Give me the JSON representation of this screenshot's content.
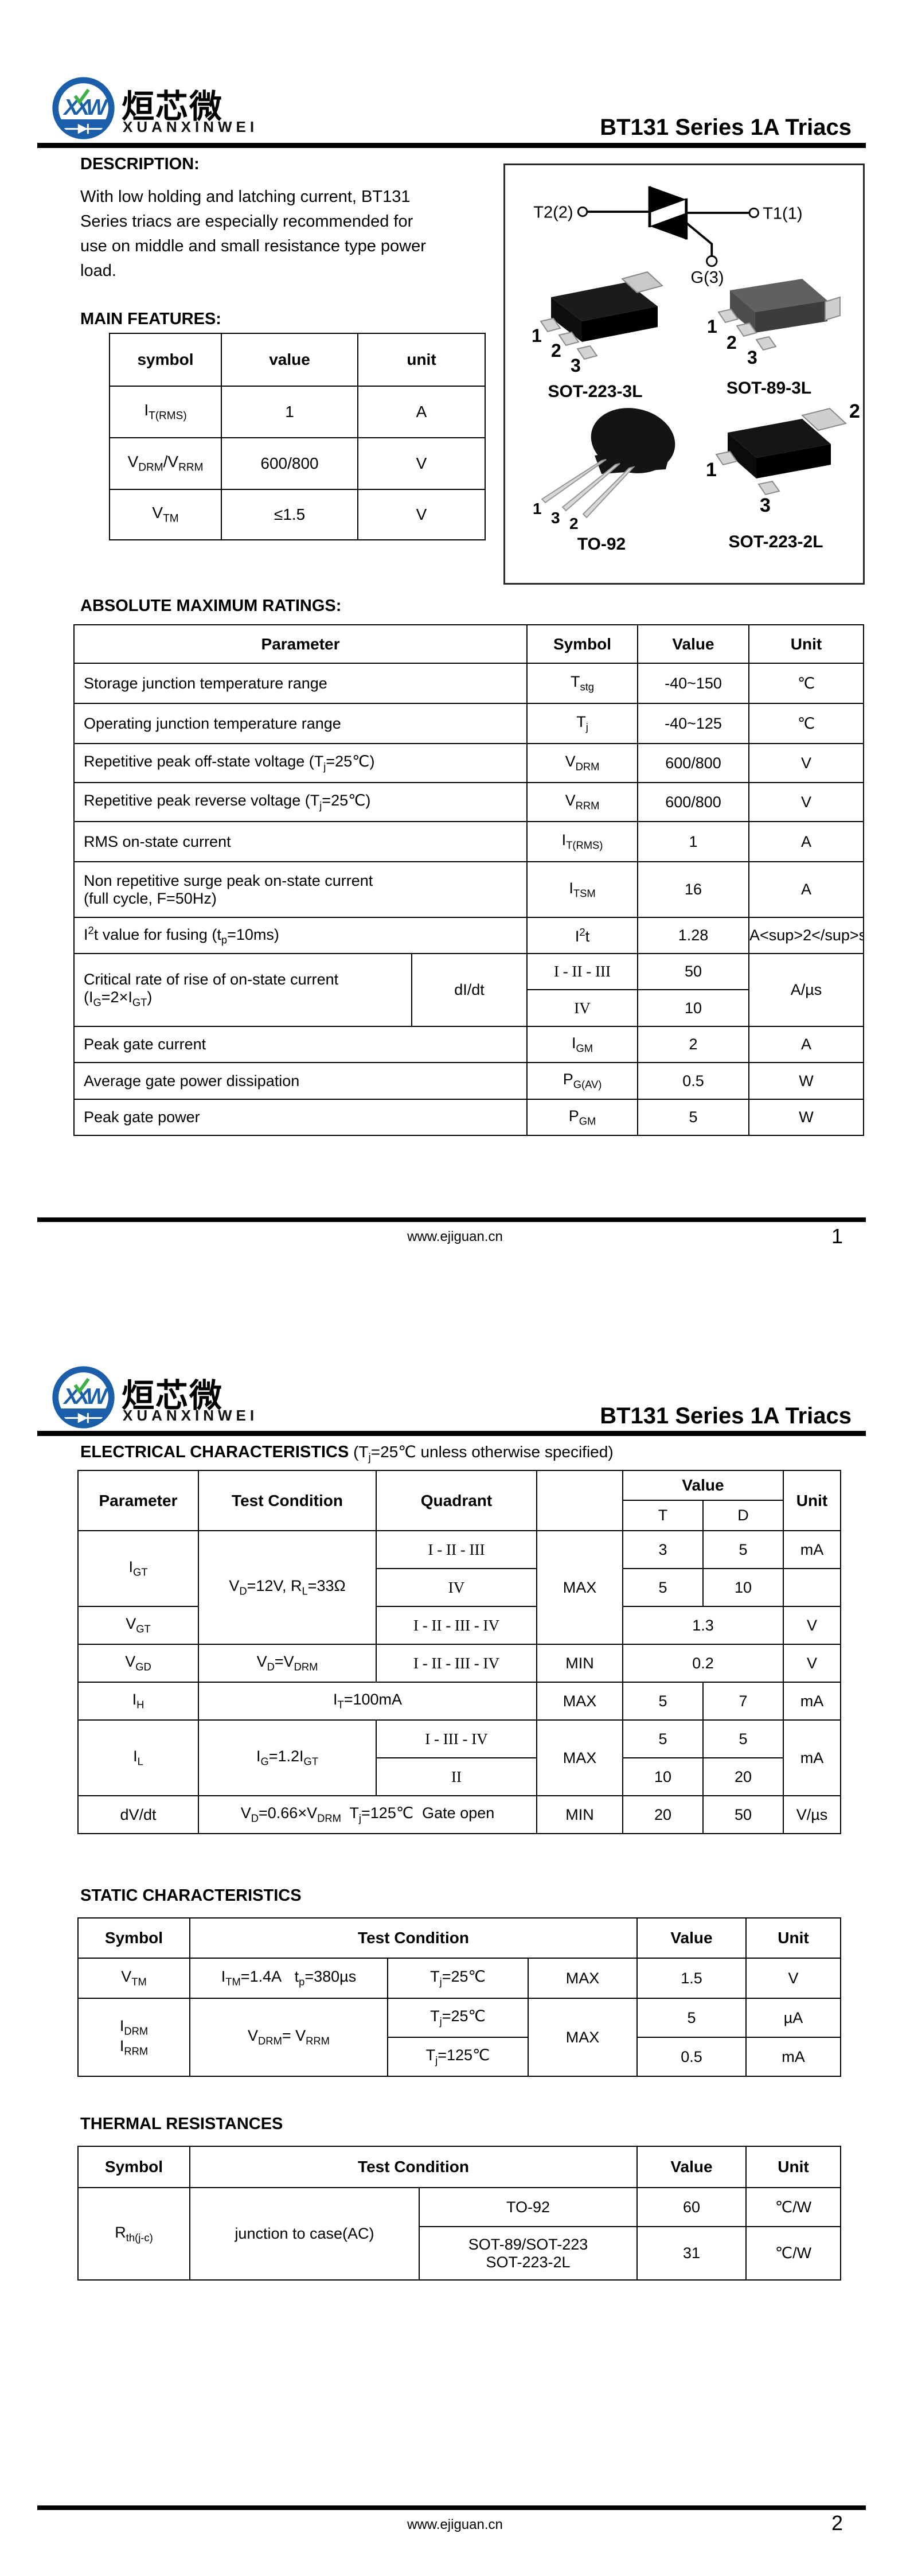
{
  "brand": {
    "logo_text": "XXW",
    "name_cn": "烜芯微",
    "name_en": "XUANXINWEI",
    "title": "BT131 Series 1A Triacs"
  },
  "colors": {
    "brand_blue": "#1b5ea9",
    "brand_green": "#3faf49",
    "text": "#000000",
    "rule": "#000000"
  },
  "footer": {
    "url": "www.ejiguan.cn",
    "page1": "1",
    "page2": "2"
  },
  "page1": {
    "description": {
      "heading": "DESCRIPTION:",
      "lines": [
        "With low holding and latching current, BT131",
        "Series triacs are especially recommended for",
        "use on middle and small resistance type power",
        "load."
      ]
    },
    "main_features": {
      "heading": "MAIN FEATURES:",
      "cols": {
        "symbol": "symbol",
        "value": "value",
        "unit": "unit"
      },
      "rows": [
        {
          "symbol": "I<sub>T(RMS)</sub>",
          "value": "1",
          "unit": "A"
        },
        {
          "symbol": "V<sub>DRM</sub>/V<sub>RRM</sub>",
          "value": "600/800",
          "unit": "V"
        },
        {
          "symbol": "V<sub>TM</sub>",
          "value": "≤1.5",
          "unit": "V"
        }
      ]
    },
    "package_panel": {
      "triac": {
        "t2": "T2(2)",
        "t1": "T1(1)",
        "g": "G(3)"
      },
      "packages": [
        {
          "caption": "SOT-223-3L",
          "pins": [
            "1",
            "2",
            "3"
          ]
        },
        {
          "caption": "SOT-89-3L",
          "pins": [
            "1",
            "2",
            "3"
          ]
        },
        {
          "caption": "TO-92",
          "pins": [
            "1",
            "3",
            "2"
          ]
        },
        {
          "caption": "SOT-223-2L",
          "pins": [
            "1",
            "2",
            "3"
          ]
        }
      ]
    },
    "abs_max": {
      "heading": "ABSOLUTE MAXIMUM RATINGS:",
      "cols": {
        "parameter": "Parameter",
        "symbol": "Symbol",
        "value": "Value",
        "unit": "Unit"
      },
      "rows": [
        {
          "parameter": "Storage junction temperature range",
          "symbol": "T<sub>stg</sub>",
          "value": "-40~150",
          "unit": "℃"
        },
        {
          "parameter": "Operating junction temperature range",
          "symbol": "T<sub>j</sub>",
          "value": "-40~125",
          "unit": "℃"
        },
        {
          "parameter": "Repetitive peak off-state voltage (T<sub>j</sub>=25℃)",
          "symbol": "V<sub>DRM</sub>",
          "value": "600/800",
          "unit": "V"
        },
        {
          "parameter": "Repetitive peak reverse voltage (T<sub>j</sub>=25℃)",
          "symbol": "V<sub>RRM</sub>",
          "value": "600/800",
          "unit": "V"
        },
        {
          "parameter": "RMS on-state current",
          "symbol": "I<sub>T(RMS)</sub>",
          "value": "1",
          "unit": "A"
        },
        {
          "parameter": "Non repetitive surge peak on-state current<br>(full cycle, F=50Hz)",
          "symbol": "I<sub>TSM</sub>",
          "value": "16",
          "unit": "A"
        },
        {
          "parameter": "I<sup>2</sup>t value for fusing (t<sub>p</sub>=10ms)",
          "symbol": "I<sup>2</sup>t",
          "value": "1.28",
          "unit": "A<sup>2</sup>s"
        }
      ],
      "didt": {
        "parameter": "Critical rate of rise of on-state current<br>(I<sub>G</sub>=2×I<sub>GT</sub>)",
        "symbol": "dI/dt",
        "quad1": "I - II - III",
        "value1": "50",
        "quad2": "IV",
        "value2": "10",
        "unit": "A/µs"
      },
      "rows2": [
        {
          "parameter": "Peak gate current",
          "symbol": "I<sub>GM</sub>",
          "value": "2",
          "unit": "A"
        },
        {
          "parameter": "Average gate power dissipation",
          "symbol": "P<sub>G(AV)</sub>",
          "value": "0.5",
          "unit": "W"
        },
        {
          "parameter": "Peak gate power",
          "symbol": "P<sub>GM</sub>",
          "value": "5",
          "unit": "W"
        }
      ]
    }
  },
  "page2": {
    "electrical": {
      "heading_bold": "ELECTRICAL CHARACTERISTICS",
      "heading_rest": "(T<sub>j</sub>=25℃  unless otherwise specified)",
      "cols": {
        "parameter": "Parameter",
        "test_condition": "Test Condition",
        "quadrant": "Quadrant",
        "value": "Value",
        "t": "T",
        "d": "D",
        "unit": "Unit"
      },
      "igt": {
        "parameter": "I<sub>GT</sub>",
        "test_condition": "V<sub>D</sub>=12V, R<sub>L</sub>=33Ω",
        "quad1": "I - II - III",
        "minmax": "MAX",
        "t1": "3",
        "d1": "5",
        "unit1": "mA",
        "quad2": "IV",
        "t2": "5",
        "d2": "10",
        "unit2": ""
      },
      "vgt": {
        "parameter": "V<sub>GT</sub>",
        "quad": "I - II - III - IV",
        "value": "1.3",
        "unit": "V"
      },
      "vgd": {
        "parameter": "V<sub>GD</sub>",
        "test_condition": "V<sub>D</sub>=V<sub>DRM</sub>",
        "quad": "I - II - III - IV",
        "minmax": "MIN",
        "value": "0.2",
        "unit": "V"
      },
      "ih": {
        "parameter": "I<sub>H</sub>",
        "test_condition": "I<sub>T</sub>=100mA",
        "minmax": "MAX",
        "t": "5",
        "d": "7",
        "unit": "mA"
      },
      "il": {
        "parameter": "I<sub>L</sub>",
        "test_condition": "I<sub>G</sub>=1.2I<sub>GT</sub>",
        "quad1": "I - III - IV",
        "minmax": "MAX",
        "t1": "5",
        "d1": "5",
        "quad2": "II",
        "t2": "10",
        "d2": "20",
        "unit": "mA"
      },
      "dvdt": {
        "parameter": "dV/dt",
        "test_condition": "V<sub>D</sub>=0.66×V<sub>DRM</sub>&nbsp; T<sub>j</sub>=125℃&nbsp; Gate open",
        "minmax": "MIN",
        "t": "20",
        "d": "50",
        "unit": "V/µs"
      }
    },
    "static": {
      "heading": "STATIC CHARACTERISTICS",
      "cols": {
        "symbol": "Symbol",
        "test_condition": "Test Condition",
        "value": "Value",
        "unit": "Unit"
      },
      "vtm": {
        "symbol": "V<sub>TM</sub>",
        "tc1": "I<sub>TM</sub>=1.4A&nbsp;&nbsp; t<sub>p</sub>=380µs",
        "tc2": "T<sub>j</sub>=25℃",
        "minmax": "MAX",
        "value": "1.5",
        "unit": "V"
      },
      "idrm": {
        "symbol": "I<sub>DRM</sub><br>I<sub>RRM</sub>",
        "tc1": "V<sub>DRM</sub>= V<sub>RRM</sub>",
        "tc2a": "T<sub>j</sub>=25℃",
        "tc2b": "T<sub>j</sub>=125℃",
        "minmax": "MAX",
        "value_a": "5",
        "unit_a": "µA",
        "value_b": "0.5",
        "unit_b": "mA"
      }
    },
    "thermal": {
      "heading": "THERMAL RESISTANCES",
      "cols": {
        "symbol": "Symbol",
        "test_condition": "Test Condition",
        "value": "Value",
        "unit": "Unit"
      },
      "row": {
        "symbol": "R<sub>th(j-c)</sub>",
        "tc1": "junction to case(AC)",
        "pkg_a": "TO-92",
        "value_a": "60",
        "unit_a": "℃/W",
        "pkg_b": "SOT-89/SOT-223<br>SOT-223-2L",
        "value_b": "31",
        "unit_b": "℃/W"
      }
    }
  }
}
